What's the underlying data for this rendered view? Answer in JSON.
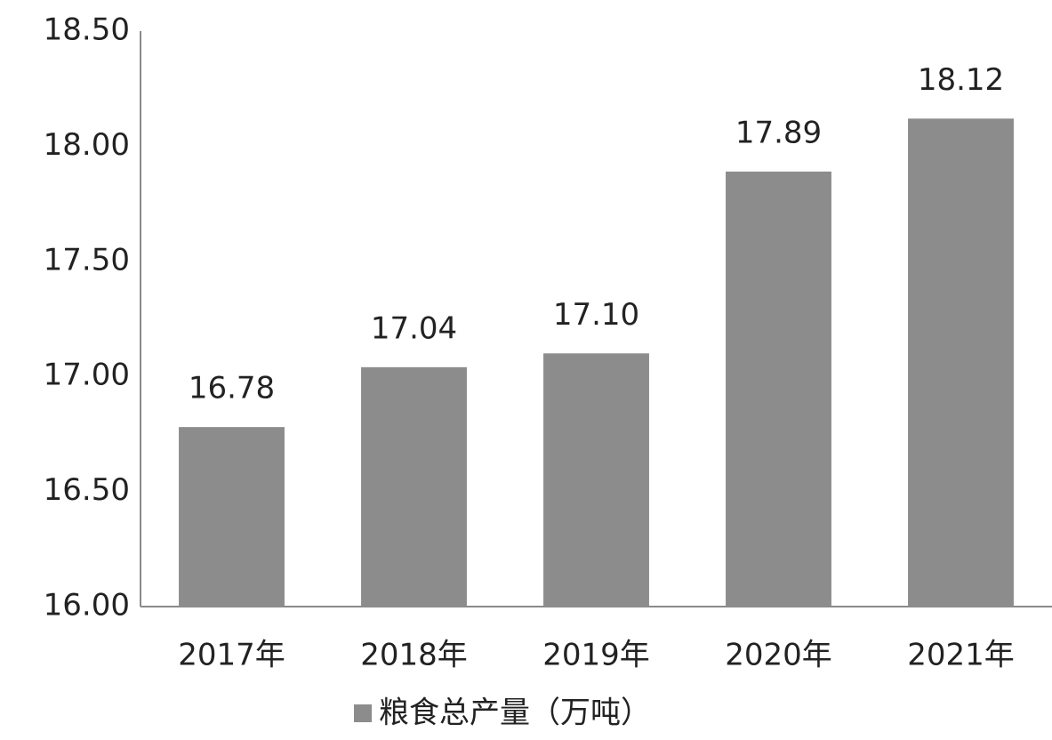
{
  "chart_data": {
    "type": "bar",
    "categories": [
      "2017年",
      "2018年",
      "2019年",
      "2020年",
      "2021年"
    ],
    "series": [
      {
        "name": "粮食总产量（万吨）",
        "color": "#8c8c8c",
        "values": [
          16.78,
          17.04,
          17.1,
          17.89,
          18.12
        ],
        "value_labels": [
          "16.78",
          "17.04",
          "17.10",
          "17.89",
          "18.12"
        ]
      }
    ],
    "ylim": [
      16,
      18.5
    ],
    "yticks": [
      {
        "value": 16,
        "label": "16.00"
      },
      {
        "value": 16.5,
        "label": "16.50"
      },
      {
        "value": 17,
        "label": "17.00"
      },
      {
        "value": 17.5,
        "label": "17.50"
      },
      {
        "value": 18,
        "label": "18.00"
      },
      {
        "value": 18.5,
        "label": "18.50"
      }
    ],
    "grid": false,
    "legend": "bottom"
  }
}
